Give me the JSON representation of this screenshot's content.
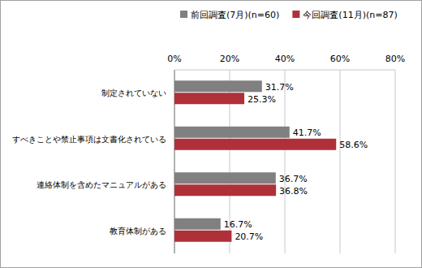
{
  "chart_data": {
    "type": "bar",
    "orientation": "horizontal",
    "categories": [
      "制定されていない",
      "すべきことや禁止事項は文書化されている",
      "連絡体制を含めたマニュアルがある",
      "教育体制がある"
    ],
    "series": [
      {
        "name": "前回調査(7月)(n=60)",
        "color": "#808080",
        "values": [
          31.7,
          41.7,
          36.7,
          16.7
        ],
        "value_labels": [
          "31.7%",
          "41.7%",
          "36.7%",
          "16.7%"
        ]
      },
      {
        "name": "今回調査(11月)(n=87)",
        "color": "#b0303a",
        "values": [
          25.3,
          58.6,
          36.8,
          20.7
        ],
        "value_labels": [
          "25.3%",
          "58.6%",
          "36.8%",
          "20.7%"
        ]
      }
    ],
    "xlim": [
      0,
      80
    ],
    "xticks": [
      {
        "value": 0,
        "label": "0%"
      },
      {
        "value": 20,
        "label": "20%"
      },
      {
        "value": 40,
        "label": "40%"
      },
      {
        "value": 60,
        "label": "60%"
      },
      {
        "value": 80,
        "label": "80%"
      }
    ],
    "grid": true,
    "legend": "top",
    "data_labels": true
  }
}
